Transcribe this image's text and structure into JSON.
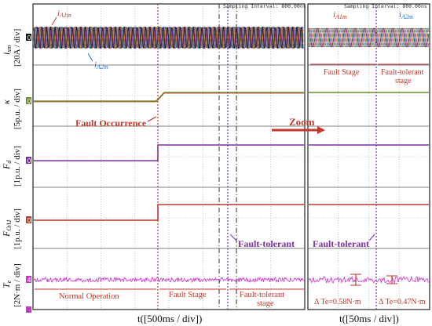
{
  "sampling": {
    "left": "Sampling Interval:  800.00ns",
    "right": "Sampling Interval:  800.00ns"
  },
  "channels": [
    {
      "id": "ism",
      "label": "i",
      "sub": "sm",
      "scale": "[20A / div]",
      "marker": "0",
      "color": "#111111"
    },
    {
      "id": "kappa",
      "label": "κ",
      "sub": "",
      "scale": "[5p.u. / div]",
      "marker": "0",
      "color": "#6b8e23"
    },
    {
      "id": "fd",
      "label": "F",
      "sub": "d",
      "scale": "[1p.u. / div]",
      "marker": "0",
      "color": "#7b2fa8"
    },
    {
      "id": "foa1",
      "label": "F",
      "sub": "OA1",
      "scale": "[1p.u. / div]",
      "marker": "0",
      "color": "#c0392b"
    },
    {
      "id": "te",
      "label": "T",
      "sub": "e",
      "scale": "[2N·m / div]",
      "marker": "4",
      "color": "#cc33cc"
    }
  ],
  "annotations": {
    "ia1m": "i",
    "ia1m_sub": "A1m",
    "ia2m": "i",
    "ia2m_sub": "A2m",
    "fault_occurrence": "Fault Occurrence",
    "zoom": "Zoom",
    "fault_tolerant_left": "Fault-tolerant",
    "fault_tolerant_right": "Fault-tolerant",
    "normal_operation": "Normal Operation",
    "fault_stage_left": "Fault Stage",
    "fault_tolerant_stage_left_1": "Fault-tolerant",
    "fault_tolerant_stage_left_2": "stage",
    "fault_stage_right": "Fault Stage",
    "fault_tolerant_stage_right_1": "Fault-tolerant",
    "fault_tolerant_stage_right_2": "stage",
    "dte1": "Δ Te=0.58N·m",
    "dte2": "Δ Te=0.47N·m"
  },
  "x_axes": {
    "left": "t([500ms / div])",
    "right": "t([50ms / div])"
  },
  "colors": {
    "grid": "#9a9a9a",
    "annotation": "#c0392b",
    "purple": "#7b2fa8",
    "blue": "#1e6fd9",
    "green": "#2e8b57"
  }
}
